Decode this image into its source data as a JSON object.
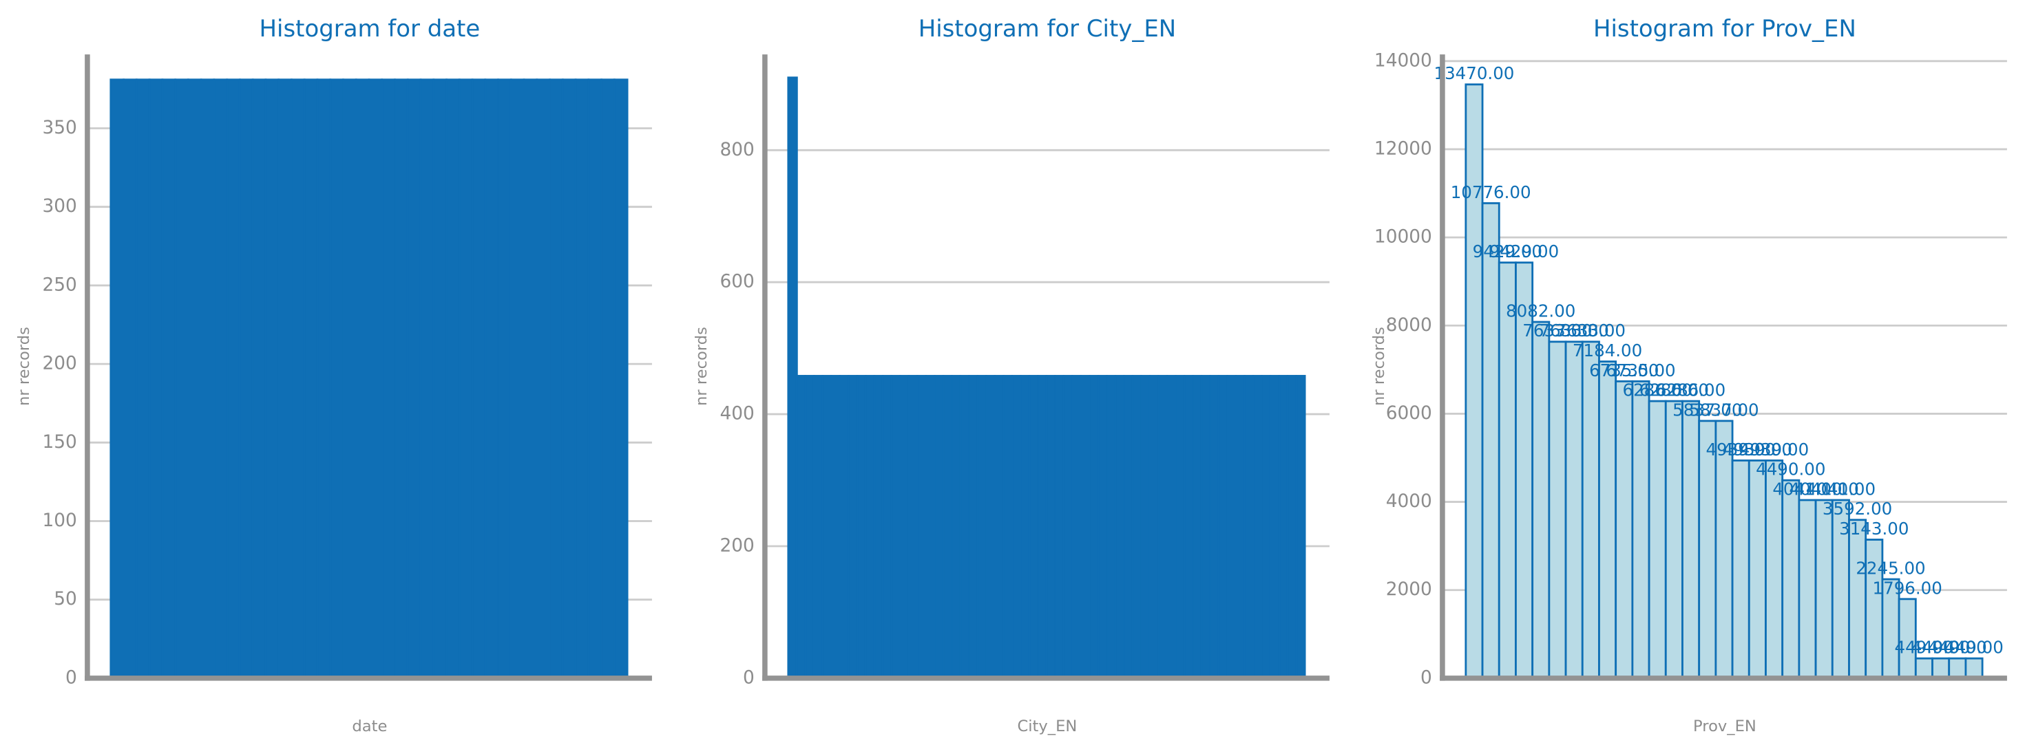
{
  "chart_data": [
    {
      "type": "bar",
      "title": "Histogram for date",
      "xlabel": "date",
      "ylabel": "nr records",
      "categories": [
        null,
        null,
        null,
        null,
        null,
        null,
        null,
        null,
        null,
        null,
        null,
        null,
        null,
        null,
        null,
        null,
        null,
        null,
        null,
        null,
        null,
        null,
        null,
        null,
        null,
        null,
        null,
        null,
        null,
        null,
        null,
        null,
        null,
        null,
        null,
        null,
        null,
        null,
        null,
        null
      ],
      "values": [
        381,
        381,
        381,
        381,
        381,
        381,
        381,
        381,
        381,
        381,
        381,
        381,
        381,
        381,
        381,
        381,
        381,
        381,
        381,
        381,
        381,
        381,
        381,
        381,
        381,
        381,
        381,
        381,
        381,
        381,
        381,
        381,
        381,
        381,
        381,
        381,
        381,
        381,
        381,
        381
      ],
      "color": "#0f6fb5",
      "edgecolor": "#0f6fb5",
      "ylim": [
        0,
        397
      ],
      "yticks": [
        0,
        50,
        100,
        150,
        200,
        250,
        300,
        350
      ],
      "grid": true
    },
    {
      "type": "bar",
      "title": "Histogram for City_EN",
      "xlabel": "City_EN",
      "ylabel": "nr records",
      "categories": [
        null,
        null,
        null,
        null,
        null,
        null,
        null,
        null,
        null,
        null,
        null,
        null,
        null,
        null,
        null,
        null,
        null,
        null,
        null,
        null,
        null,
        null,
        null,
        null,
        null,
        null,
        null,
        null,
        null,
        null,
        null,
        null,
        null,
        null,
        null,
        null,
        null,
        null,
        null,
        null,
        null,
        null,
        null,
        null,
        null,
        null,
        null,
        null,
        null,
        null,
        null,
        null,
        null,
        null,
        null,
        null,
        null,
        null,
        null,
        null
      ],
      "values": [
        910,
        458,
        458,
        458,
        458,
        458,
        458,
        458,
        458,
        458,
        458,
        458,
        458,
        458,
        458,
        458,
        458,
        458,
        458,
        458,
        458,
        458,
        458,
        458,
        458,
        458,
        458,
        458,
        458,
        458,
        458,
        458,
        458,
        458,
        458,
        458,
        458,
        458,
        458,
        458,
        458,
        458,
        458,
        458,
        458,
        458,
        458,
        458,
        458,
        458,
        458,
        458,
        458,
        458,
        458,
        458,
        458,
        458,
        458,
        458
      ],
      "color": "#0f6fb5",
      "edgecolor": "#0f6fb5",
      "ylim": [
        0,
        945
      ],
      "yticks": [
        0,
        200,
        400,
        600,
        800
      ],
      "grid": true
    },
    {
      "type": "bar",
      "title": "Histogram for Prov_EN",
      "xlabel": "Prov_EN",
      "ylabel": "nr records",
      "categories": [
        null,
        null,
        null,
        null,
        null,
        null,
        null,
        null,
        null,
        null,
        null,
        null,
        null,
        null,
        null,
        null,
        null,
        null,
        null,
        null,
        null,
        null,
        null,
        null,
        null,
        null,
        null,
        null,
        null,
        null,
        null
      ],
      "values": [
        13470,
        10776,
        9429,
        9429,
        8082,
        7633,
        7633,
        7633,
        7184,
        6735,
        6735,
        6286,
        6286,
        6286,
        5837,
        5837,
        4939,
        4939,
        4939,
        4490,
        4041,
        4041,
        4041,
        3592,
        3143,
        2245,
        1796,
        449,
        449,
        449,
        449
      ],
      "value_labels": [
        "13470.00",
        "10776.00",
        "9429.00",
        "9429.00",
        "8082.00",
        "7633.00",
        "7633.00",
        "7633.00",
        "7184.00",
        "6735.00",
        "6735.00",
        "6286.00",
        "6286.00",
        "6286.00",
        "5837.00",
        "5837.00",
        "4939.00",
        "4939.00",
        "4939.00",
        "4490.00",
        "4041.00",
        "4041.00",
        "4041.00",
        "3592.00",
        "3143.00",
        "2245.00",
        "1796.00",
        "449.00",
        "449.00",
        "449.00",
        "449.00"
      ],
      "color": "#b9dbe6",
      "edgecolor": "#0f6fb5",
      "ylim": [
        0,
        14150
      ],
      "yticks": [
        0,
        2000,
        4000,
        6000,
        8000,
        10000,
        12000,
        14000
      ],
      "grid": true
    }
  ]
}
